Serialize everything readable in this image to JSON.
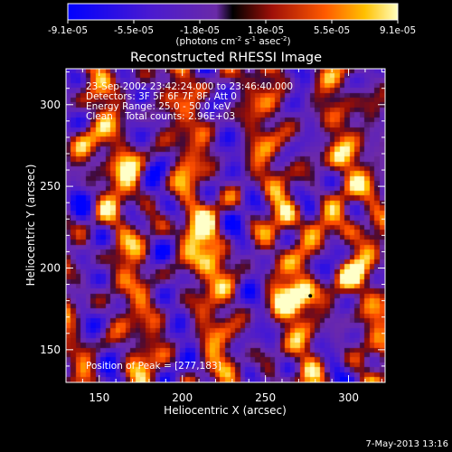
{
  "chart_data": {
    "type": "heatmap",
    "title": "Reconstructed RHESSI Image",
    "xlabel": "Heliocentric X (arcsec)",
    "ylabel": "Heliocentric Y (arcsec)",
    "xlim": [
      130,
      322
    ],
    "ylim": [
      130,
      322
    ],
    "x_ticks": [
      150,
      200,
      250,
      300
    ],
    "y_ticks": [
      150,
      200,
      250,
      300
    ],
    "colorbar": {
      "range": [
        -9.1e-05,
        9.1e-05
      ],
      "tick_labels": [
        "-9.1e-05",
        "-5.5e-05",
        "-1.8e-05",
        "1.8e-05",
        "5.5e-05",
        "9.1e-05"
      ],
      "unit_label": "(photons cm",
      "unit_exp1": "-2",
      "unit_mid": " s",
      "unit_exp2": "-1",
      "unit_tail": " asec",
      "unit_exp3": "-2",
      "unit_close": ")"
    },
    "annotations": {
      "time_range": "23-Sep-2002 23:42:24.000 to 23:46:40.000",
      "detectors": "Detectors: 3F 5F 6F 7F 8F, Att 0",
      "energy": "Energy Range: 25.0 - 50.0 keV",
      "clean": "Clean    Total counts: 2.96E+03",
      "peak": "Position of Peak = [277,183]"
    },
    "peak": [
      277,
      183
    ],
    "bright_sources": [
      {
        "x": 275,
        "y": 183,
        "value": 9.1e-05
      },
      {
        "x": 282,
        "y": 226,
        "value": 8.5e-05
      },
      {
        "x": 205,
        "y": 222,
        "value": 8e-05
      },
      {
        "x": 300,
        "y": 194,
        "value": 7.5e-05
      },
      {
        "x": 218,
        "y": 202,
        "value": 6e-05
      },
      {
        "x": 138,
        "y": 275,
        "value": 6e-05
      },
      {
        "x": 170,
        "y": 260,
        "value": 5.5e-05
      },
      {
        "x": 262,
        "y": 178,
        "value": 5.5e-05
      },
      {
        "x": 295,
        "y": 268,
        "value": 5e-05
      },
      {
        "x": 318,
        "y": 250,
        "value": 5e-05
      }
    ],
    "timestamp": "7-May-2013 13:16"
  }
}
